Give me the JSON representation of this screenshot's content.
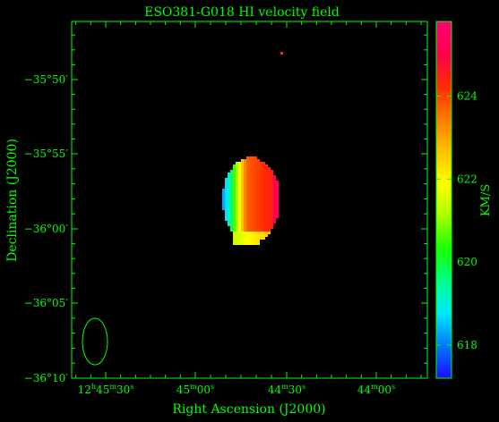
{
  "chart_data": {
    "type": "heatmap",
    "title": "ESO381-G018  HI velocity field",
    "xlabel": "Right Ascension (J2000)",
    "ylabel": "Declination (J2000)",
    "colorbar": {
      "label": "KM/S",
      "range": [
        617.2,
        625.8
      ],
      "ticks": [
        618,
        620,
        622,
        624
      ],
      "tick_labels": [
        "618",
        "620",
        "622",
        "624"
      ],
      "colormap": [
        "#1a0dff",
        "#0077ff",
        "#00e8ff",
        "#00ff8c",
        "#1aff00",
        "#a8ff00",
        "#ffff00",
        "#ffc000",
        "#ff7a00",
        "#ff2a00",
        "#ff0050",
        "#ff0078"
      ]
    },
    "x_ticks": [
      {
        "h": "12",
        "m": "45",
        "s": "30"
      },
      {
        "h": "",
        "m": "45",
        "s": "00"
      },
      {
        "h": "",
        "m": "44",
        "s": "30"
      },
      {
        "h": "",
        "m": "44",
        "s": "00"
      }
    ],
    "y_ticks": [
      "−35°50′",
      "−35°55′",
      "−36°00′",
      "−36°05′",
      "−36°10′"
    ],
    "beam": "ellipse, lower-left",
    "colors": {
      "frame": "#00ff00",
      "background": "#000000"
    }
  }
}
